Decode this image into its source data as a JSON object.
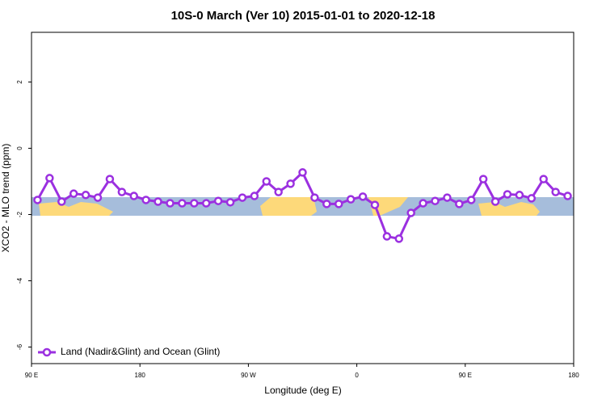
{
  "chart_data": {
    "type": "line",
    "title": "10S-0 March (Ver 10)   2015-01-01 to 2020-12-18",
    "x_label": "Longitude (deg E)",
    "y_label": "XCO2 - MLO trend (ppm)",
    "x": [
      95,
      105,
      115,
      125,
      135,
      145,
      155,
      165,
      175,
      185,
      195,
      205,
      215,
      225,
      235,
      245,
      255,
      265,
      275,
      285,
      295,
      305,
      315,
      325,
      335,
      345,
      355,
      365,
      375,
      385,
      395,
      405,
      415,
      425,
      435,
      445,
      455,
      465,
      475,
      485,
      495,
      505,
      515,
      525,
      535
    ],
    "series": [
      {
        "name": "Land (Nadir&Glint) and Ocean (Glint)",
        "color": "#9b30e0",
        "values": [
          -1.56,
          -0.9,
          -1.61,
          -1.37,
          -1.41,
          -1.49,
          -0.93,
          -1.32,
          -1.44,
          -1.56,
          -1.61,
          -1.66,
          -1.66,
          -1.66,
          -1.66,
          -1.59,
          -1.63,
          -1.49,
          -1.44,
          -1.0,
          -1.32,
          -1.07,
          -0.73,
          -1.49,
          -1.68,
          -1.68,
          -1.54,
          -1.46,
          -1.71,
          -2.66,
          -2.73,
          -1.95,
          -1.66,
          -1.59,
          -1.49,
          -1.68,
          -1.56,
          -0.93,
          -1.61,
          -1.39,
          -1.41,
          -1.51,
          -0.93,
          -1.32,
          -1.44
        ]
      }
    ],
    "xlim": [
      90,
      540
    ],
    "xticks": [
      {
        "value": 90,
        "label": "90 E"
      },
      180,
      {
        "value": 270,
        "label": "90 W"
      },
      {
        "value": 360,
        "label": "0"
      },
      {
        "value": 450,
        "label": "90 E"
      },
      {
        "value": 540,
        "label": "180"
      }
    ],
    "ylim": [
      -6.5,
      3.5
    ],
    "yticks": [
      2,
      0,
      -2,
      -4,
      -6
    ],
    "legend": "bottom-left"
  }
}
